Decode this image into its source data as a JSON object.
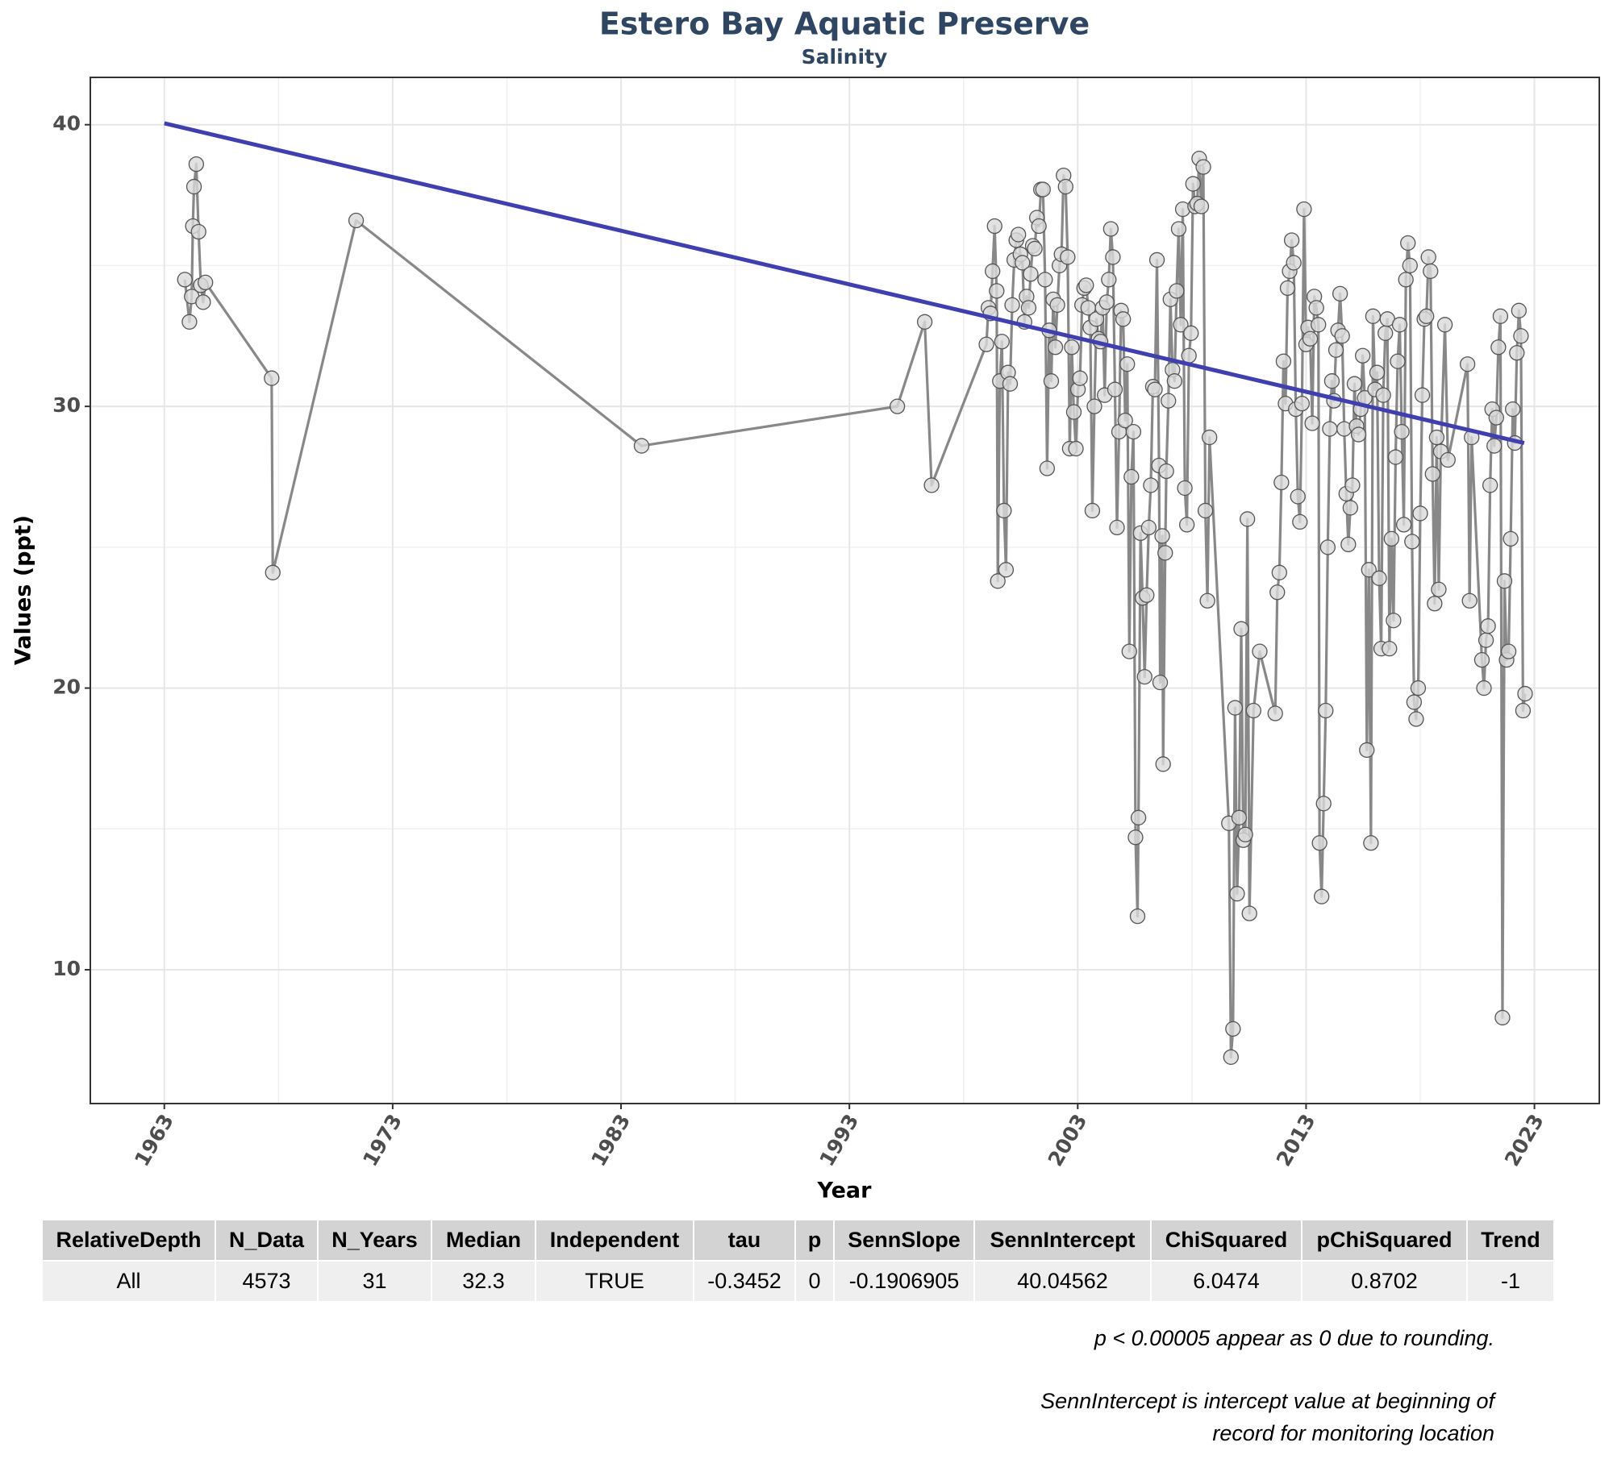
{
  "chart_data": {
    "type": "line",
    "title": "Estero Bay Aquatic Preserve",
    "subtitle": "Salinity",
    "x_label": "Year",
    "y_label": "Values (ppt)",
    "x": [
      1963.9,
      1964.1,
      1964.2,
      1964.25,
      1964.3,
      1964.4,
      1964.5,
      1964.6,
      1964.7,
      1964.8,
      1967.7,
      1967.75,
      1971.4,
      1983.9,
      1995.1,
      1996.3,
      1996.6,
      1999.0,
      1999.09,
      1999.18,
      1999.27,
      1999.36,
      1999.45,
      1999.5,
      1999.59,
      1999.68,
      1999.77,
      1999.86,
      1999.95,
      2000.04,
      2000.13,
      2000.22,
      2000.31,
      2000.4,
      2000.49,
      2000.58,
      2000.67,
      2000.76,
      2000.85,
      2000.94,
      2001.03,
      2001.12,
      2001.21,
      2001.3,
      2001.39,
      2001.48,
      2001.57,
      2001.66,
      2001.75,
      2001.84,
      2001.93,
      2002.02,
      2002.11,
      2002.2,
      2002.29,
      2002.38,
      2002.47,
      2002.56,
      2002.65,
      2002.74,
      2002.83,
      2002.92,
      2003.01,
      2003.1,
      2003.19,
      2003.28,
      2003.37,
      2003.46,
      2003.55,
      2003.64,
      2003.73,
      2003.82,
      2003.91,
      2004.0,
      2004.09,
      2004.18,
      2004.27,
      2004.36,
      2004.45,
      2004.54,
      2004.63,
      2004.72,
      2004.81,
      2004.9,
      2004.99,
      2005.08,
      2005.17,
      2005.26,
      2005.35,
      2005.44,
      2005.53,
      2005.62,
      2005.66,
      2005.75,
      2005.84,
      2005.93,
      2006.02,
      2006.11,
      2006.2,
      2006.29,
      2006.38,
      2006.47,
      2006.56,
      2006.61,
      2006.7,
      2006.74,
      2006.83,
      2006.88,
      2006.97,
      2007.06,
      2007.15,
      2007.24,
      2007.33,
      2007.42,
      2007.51,
      2007.6,
      2007.69,
      2007.78,
      2007.87,
      2007.96,
      2008.05,
      2008.14,
      2008.23,
      2008.32,
      2008.41,
      2008.5,
      2008.59,
      2008.68,
      2008.77,
      2009.62,
      2009.71,
      2009.8,
      2009.89,
      2009.98,
      2010.07,
      2010.16,
      2010.25,
      2010.34,
      2010.43,
      2010.52,
      2010.7,
      2010.97,
      2011.65,
      2011.74,
      2011.83,
      2011.92,
      2012.01,
      2012.1,
      2012.19,
      2012.28,
      2012.37,
      2012.46,
      2012.55,
      2012.64,
      2012.73,
      2012.82,
      2012.91,
      2013.0,
      2013.09,
      2013.18,
      2013.27,
      2013.36,
      2013.45,
      2013.54,
      2013.59,
      2013.68,
      2013.77,
      2013.86,
      2013.95,
      2014.04,
      2014.13,
      2014.22,
      2014.31,
      2014.4,
      2014.49,
      2014.58,
      2014.67,
      2014.76,
      2014.85,
      2014.94,
      2015.03,
      2015.12,
      2015.21,
      2015.3,
      2015.39,
      2015.48,
      2015.57,
      2015.66,
      2015.75,
      2015.84,
      2015.93,
      2016.02,
      2016.11,
      2016.2,
      2016.29,
      2016.38,
      2016.47,
      2016.56,
      2016.65,
      2016.74,
      2016.83,
      2016.92,
      2017.01,
      2017.1,
      2017.19,
      2017.28,
      2017.37,
      2017.46,
      2017.55,
      2017.64,
      2017.73,
      2017.82,
      2017.91,
      2018.0,
      2018.09,
      2018.18,
      2018.27,
      2018.36,
      2018.45,
      2018.54,
      2018.63,
      2018.72,
      2018.81,
      2018.9,
      2019.08,
      2019.21,
      2020.07,
      2020.16,
      2020.25,
      2020.7,
      2020.79,
      2020.88,
      2020.97,
      2021.06,
      2021.15,
      2021.24,
      2021.33,
      2021.42,
      2021.51,
      2021.6,
      2021.69,
      2021.78,
      2021.87,
      2021.96,
      2022.05,
      2022.14,
      2022.23,
      2022.32,
      2022.41,
      2022.5,
      2022.59
    ],
    "series": [
      {
        "color": "#888888",
        "marker_color": "#d9d9d9",
        "values": [
          34.5,
          33.0,
          33.9,
          36.4,
          37.8,
          38.6,
          36.2,
          34.3,
          33.7,
          34.4,
          31.0,
          24.1,
          36.6,
          28.6,
          30.0,
          33.0,
          27.2,
          32.2,
          33.5,
          33.3,
          34.8,
          36.4,
          34.1,
          23.8,
          30.9,
          32.3,
          26.3,
          24.2,
          31.2,
          30.8,
          33.6,
          35.2,
          35.9,
          36.1,
          35.4,
          35.1,
          33.0,
          33.9,
          33.5,
          34.7,
          35.7,
          35.6,
          36.7,
          36.4,
          37.7,
          37.7,
          34.5,
          27.8,
          32.7,
          30.9,
          33.8,
          32.1,
          33.6,
          35.0,
          35.4,
          38.2,
          37.8,
          35.3,
          28.5,
          32.1,
          29.8,
          28.5,
          30.6,
          31.0,
          33.6,
          34.2,
          34.3,
          33.5,
          32.8,
          26.3,
          30.0,
          33.1,
          32.4,
          32.3,
          33.5,
          30.4,
          33.7,
          34.5,
          36.3,
          35.3,
          30.6,
          25.7,
          29.1,
          33.4,
          33.1,
          29.5,
          31.5,
          21.3,
          27.5,
          29.1,
          14.7,
          11.9,
          15.4,
          25.5,
          23.2,
          20.4,
          23.3,
          25.7,
          27.2,
          30.7,
          30.6,
          35.2,
          27.9,
          20.2,
          25.4,
          17.3,
          24.8,
          27.7,
          30.2,
          33.8,
          31.3,
          30.9,
          34.1,
          36.3,
          32.9,
          37.0,
          27.1,
          25.8,
          31.8,
          32.6,
          37.9,
          37.1,
          37.2,
          38.8,
          37.1,
          38.5,
          26.3,
          23.1,
          28.9,
          15.2,
          6.9,
          7.9,
          19.3,
          12.7,
          15.4,
          22.1,
          14.6,
          14.8,
          26.0,
          12.0,
          19.2,
          21.3,
          19.1,
          23.4,
          24.1,
          27.3,
          31.6,
          30.1,
          34.2,
          34.8,
          35.9,
          35.1,
          29.9,
          26.8,
          25.9,
          30.1,
          37.0,
          32.2,
          32.8,
          32.4,
          29.4,
          33.9,
          33.5,
          32.9,
          14.5,
          12.6,
          15.9,
          19.2,
          25.0,
          29.2,
          30.9,
          30.2,
          32.0,
          32.7,
          34.0,
          32.5,
          29.2,
          26.9,
          25.1,
          26.4,
          27.2,
          30.8,
          29.3,
          29.0,
          29.9,
          31.8,
          30.3,
          17.8,
          24.2,
          14.5,
          33.2,
          30.6,
          31.2,
          23.9,
          21.4,
          30.4,
          32.6,
          33.1,
          21.4,
          25.3,
          22.4,
          28.2,
          31.6,
          32.9,
          29.1,
          25.8,
          34.5,
          35.8,
          35.0,
          25.2,
          19.5,
          18.9,
          20.0,
          26.2,
          30.4,
          33.1,
          33.2,
          35.3,
          34.8,
          27.6,
          23.0,
          28.9,
          23.5,
          28.4,
          32.9,
          28.1,
          31.5,
          23.1,
          28.9,
          21.0,
          20.0,
          21.7,
          22.2,
          27.2,
          29.9,
          28.6,
          29.6,
          32.1,
          33.2,
          8.3,
          23.8,
          21.0,
          21.3,
          25.3,
          29.9,
          28.7,
          31.9,
          33.4,
          32.5,
          19.2,
          19.8
        ]
      }
    ],
    "trend": {
      "x": [
        1963,
        2022.55
      ],
      "values": [
        40.05,
        28.7
      ],
      "color": "#3f3fb0"
    },
    "xlim": [
      1959.76,
      2025.84
    ],
    "ylim": [
      5.25,
      41.68
    ],
    "xticks": [
      1963,
      1973,
      1983,
      1993,
      2003,
      2013,
      2023
    ],
    "yticks": [
      10,
      20,
      30,
      40
    ],
    "grid": true
  },
  "table": {
    "columns": [
      "RelativeDepth",
      "N_Data",
      "N_Years",
      "Median",
      "Independent",
      "tau",
      "p",
      "SennSlope",
      "SennIntercept",
      "ChiSquared",
      "pChiSquared",
      "Trend"
    ],
    "rows": [
      [
        "All",
        "4573",
        "31",
        "32.3",
        "TRUE",
        "-0.3452",
        "0",
        "-0.1906905",
        "40.04562",
        "6.0474",
        "0.8702",
        "-1"
      ]
    ]
  },
  "notes": [
    "p < 0.00005 appear as 0 due to rounding.",
    "SennIntercept is intercept value at beginning of record for monitoring location"
  ]
}
